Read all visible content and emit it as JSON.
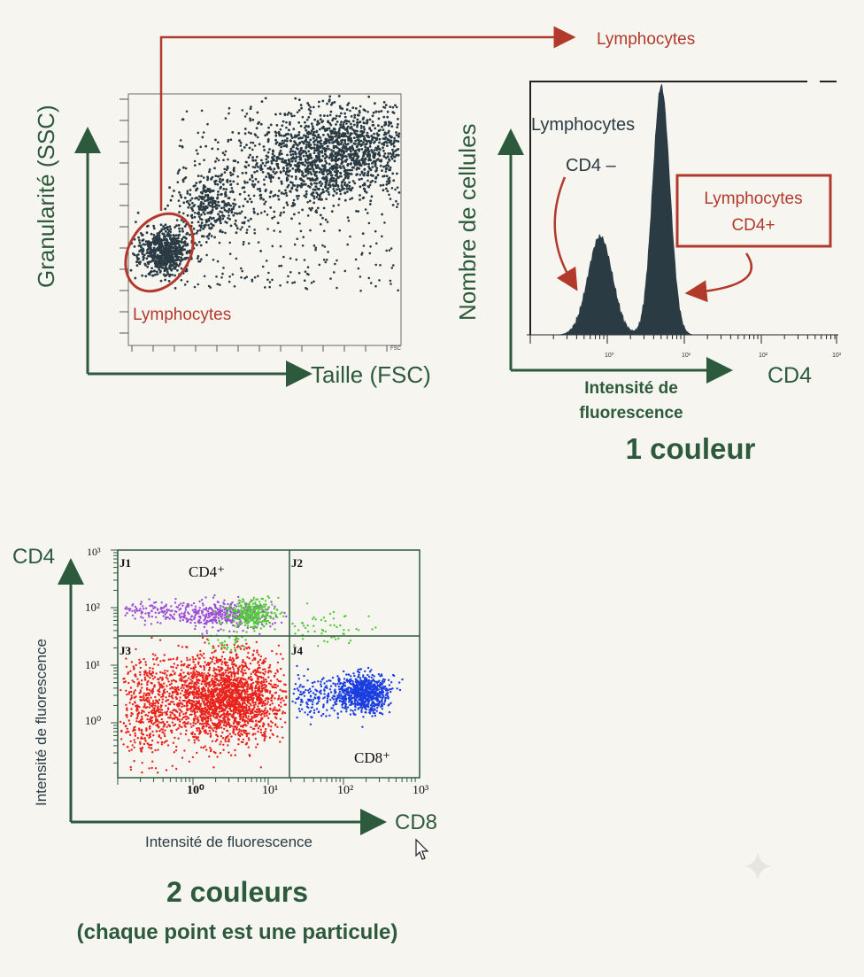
{
  "colors": {
    "axis_green": "#2d5a3d",
    "gate_red": "#b23a2c",
    "dots_dark": "#2a3b44",
    "cd4_purple": "#9b4fd6",
    "cd4_green": "#55c93a",
    "cd8_blue": "#1a3ee0",
    "neg_red": "#e8231c",
    "background": "#f6f5ef"
  },
  "panel1": {
    "ylabel": "Granularité (SSC)",
    "xlabel": "Taille (FSC)",
    "gate_label": "Lymphocytes",
    "arrow_label": "Lymphocytes",
    "corner_tick": "FSC"
  },
  "panel2": {
    "ylabel": "Nombre de cellules",
    "xlabel_line1": "Intensité de",
    "xlabel_line2": "fluorescence",
    "x_axis_name": "CD4",
    "neg_label_line1": "Lymphocytes",
    "neg_label_line2": "CD4 –",
    "pos_label_line1": "Lymphocytes",
    "pos_label_line2": "CD4+",
    "x_ticks": [
      "10⁰",
      "10¹",
      "10²",
      "10³"
    ],
    "caption": "1 couleur"
  },
  "panel3": {
    "y_axis_name": "CD4",
    "x_axis_name": "CD8",
    "ylabel": "Intensité de fluorescence",
    "xlabel": "Intensité de fluorescence",
    "quadrants": [
      "J1",
      "J2",
      "J3",
      "J4"
    ],
    "cd4_label": "CD4⁺",
    "cd8_label": "CD8⁺",
    "y_ticks": [
      "10³",
      "10²",
      "10¹",
      "10⁰"
    ],
    "x_ticks": [
      "10⁰",
      "10¹",
      "10²",
      "10³"
    ],
    "caption_line1": "2 couleurs",
    "caption_line2": "(chaque point est une particule)"
  }
}
